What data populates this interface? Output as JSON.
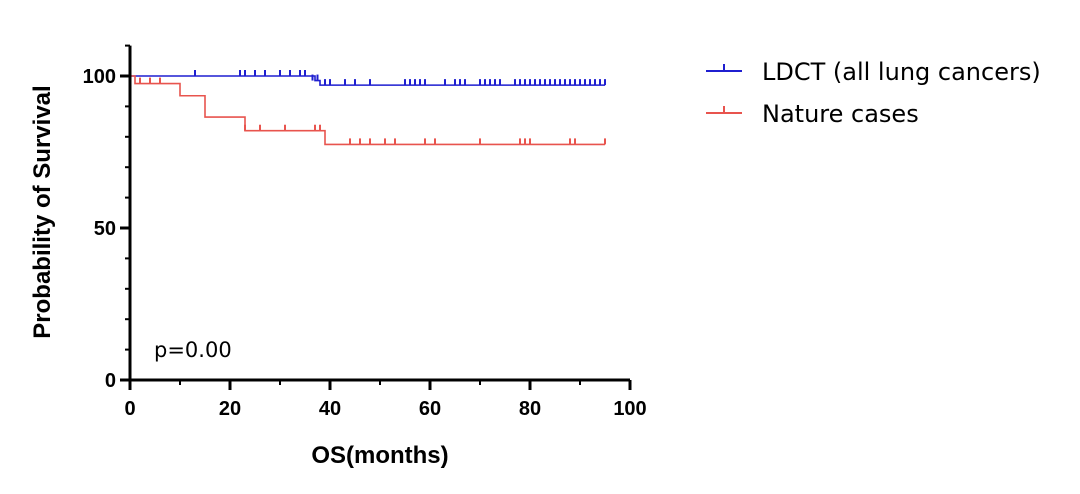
{
  "chart_data": {
    "type": "line",
    "subtype": "kaplan-meier",
    "title": "",
    "xlabel": "OS(months)",
    "ylabel": "Probability of Survival",
    "xlim": [
      0,
      100
    ],
    "ylim": [
      0,
      110
    ],
    "xticks": [
      0,
      20,
      40,
      60,
      80,
      100
    ],
    "xtick_labels": [
      "0",
      "20",
      "40",
      "60",
      "80",
      "100"
    ],
    "yticks": [
      0,
      50,
      100
    ],
    "ytick_labels": [
      "0",
      "50",
      "100"
    ],
    "x_minor_step": 10,
    "y_minor_step": 10,
    "grid": false,
    "legend_position": "right",
    "annotation": "p=0.00",
    "series": [
      {
        "name": "LDCT (all lung cancers)",
        "color": "#1f1fd0",
        "steps": [
          [
            0,
            100
          ],
          [
            37,
            100
          ],
          [
            37,
            98.5
          ],
          [
            38,
            98.5
          ],
          [
            38,
            97
          ],
          [
            95,
            97
          ]
        ],
        "censor_marks": [
          [
            13,
            100
          ],
          [
            22,
            100
          ],
          [
            23,
            100
          ],
          [
            25,
            100
          ],
          [
            27,
            100
          ],
          [
            30,
            100
          ],
          [
            32,
            100
          ],
          [
            34,
            100
          ],
          [
            35,
            100
          ],
          [
            36.5,
            98.5
          ],
          [
            37.5,
            98.5
          ],
          [
            39,
            97
          ],
          [
            40,
            97
          ],
          [
            43,
            97
          ],
          [
            45,
            97
          ],
          [
            48,
            97
          ],
          [
            55,
            97
          ],
          [
            56,
            97
          ],
          [
            57,
            97
          ],
          [
            58,
            97
          ],
          [
            59,
            97
          ],
          [
            63,
            97
          ],
          [
            65,
            97
          ],
          [
            66,
            97
          ],
          [
            67,
            97
          ],
          [
            70,
            97
          ],
          [
            71,
            97
          ],
          [
            72,
            97
          ],
          [
            73,
            97
          ],
          [
            74,
            97
          ],
          [
            77,
            97
          ],
          [
            78,
            97
          ],
          [
            79,
            97
          ],
          [
            80,
            97
          ],
          [
            81,
            97
          ],
          [
            82,
            97
          ],
          [
            83,
            97
          ],
          [
            84,
            97
          ],
          [
            85,
            97
          ],
          [
            86,
            97
          ],
          [
            87,
            97
          ],
          [
            88,
            97
          ],
          [
            89,
            97
          ],
          [
            90,
            97
          ],
          [
            91,
            97
          ],
          [
            92,
            97
          ],
          [
            93,
            97
          ],
          [
            94,
            97
          ],
          [
            95,
            97
          ]
        ]
      },
      {
        "name": "Nature cases",
        "color": "#e8544e",
        "steps": [
          [
            0,
            100
          ],
          [
            1,
            100
          ],
          [
            1,
            97.5
          ],
          [
            10,
            97.5
          ],
          [
            10,
            93.5
          ],
          [
            15,
            93.5
          ],
          [
            15,
            86.5
          ],
          [
            23,
            86.5
          ],
          [
            23,
            82
          ],
          [
            39,
            82
          ],
          [
            39,
            77.5
          ],
          [
            95,
            77.5
          ]
        ],
        "censor_marks": [
          [
            2,
            97.5
          ],
          [
            4,
            97.5
          ],
          [
            6,
            97.5
          ],
          [
            23,
            82
          ],
          [
            26,
            82
          ],
          [
            31,
            82
          ],
          [
            37,
            82
          ],
          [
            38,
            82
          ],
          [
            44,
            77.5
          ],
          [
            46,
            77.5
          ],
          [
            48,
            77.5
          ],
          [
            51,
            77.5
          ],
          [
            53,
            77.5
          ],
          [
            59,
            77.5
          ],
          [
            61,
            77.5
          ],
          [
            70,
            77.5
          ],
          [
            78,
            77.5
          ],
          [
            79,
            77.5
          ],
          [
            80,
            77.5
          ],
          [
            88,
            77.5
          ],
          [
            89,
            77.5
          ],
          [
            95,
            77.5
          ]
        ]
      }
    ]
  }
}
